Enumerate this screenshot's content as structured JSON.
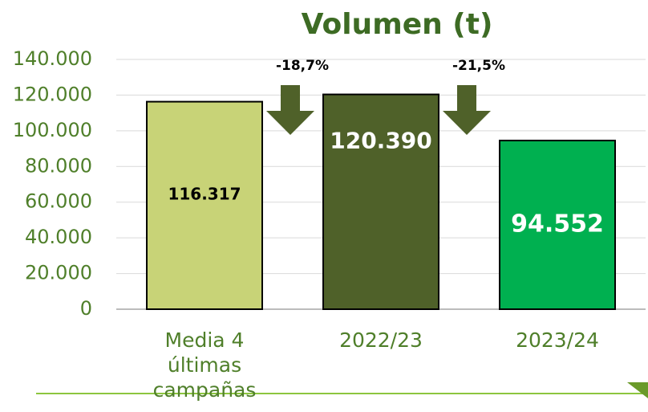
{
  "chart_data": {
    "type": "bar",
    "title": "Volumen (t)",
    "categories": [
      "Media 4 últimas campañas",
      "2022/23",
      "2023/24"
    ],
    "values": [
      116317,
      120390,
      94552
    ],
    "value_labels": [
      "116.317",
      "120.390",
      "94.552"
    ],
    "colors": [
      "#c8d377",
      "#4f6129",
      "#00b050"
    ],
    "ylim": [
      0,
      140000
    ],
    "yticks": [
      0,
      {
        "value": 20000,
        "label": "20.000"
      },
      {
        "value": 40000,
        "label": "40.000"
      },
      {
        "value": 60000,
        "label": "60.000"
      },
      {
        "value": 80000,
        "label": "80.000"
      },
      {
        "value": 100000,
        "label": "100.000"
      },
      {
        "value": 120000,
        "label": "120.000"
      },
      {
        "value": 140000,
        "label": "140.000"
      }
    ],
    "grid": true,
    "annotations": [
      "-18,7%",
      "-21,5%"
    ]
  }
}
